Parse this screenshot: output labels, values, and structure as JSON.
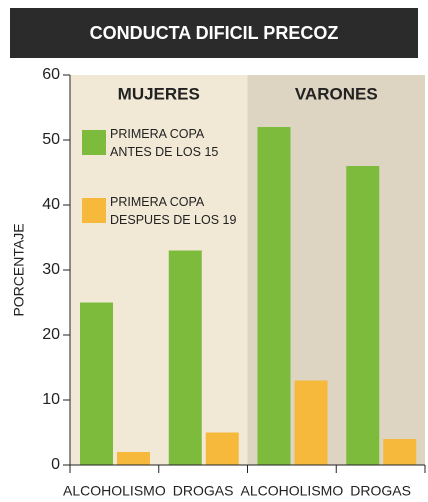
{
  "chart_data": {
    "type": "bar",
    "title": "CONDUCTA DIFICIL PRECOZ",
    "y_label": "PORCENTAJE",
    "categories": [
      "ALCOHOLISMO",
      "DROGAS",
      "ALCOHOLISMO",
      "DROGAS"
    ],
    "panels": [
      {
        "label": "MUJERES",
        "color": "#f1e9d6"
      },
      {
        "label": "VARONES",
        "color": "#ddd4c2"
      }
    ],
    "series": [
      {
        "name": "PRIMERA COPA\nANTES DE LOS 15",
        "color": "#7dbb3c",
        "values": [
          25,
          33,
          52,
          46
        ]
      },
      {
        "name": "PRIMERA COPA\nDESPUES DE LOS 19",
        "color": "#f7b93c",
        "values": [
          2,
          5,
          13,
          4
        ]
      }
    ],
    "ylim": [
      0,
      60
    ],
    "yticks": [
      0,
      10,
      20,
      30,
      40,
      50,
      60
    ]
  }
}
